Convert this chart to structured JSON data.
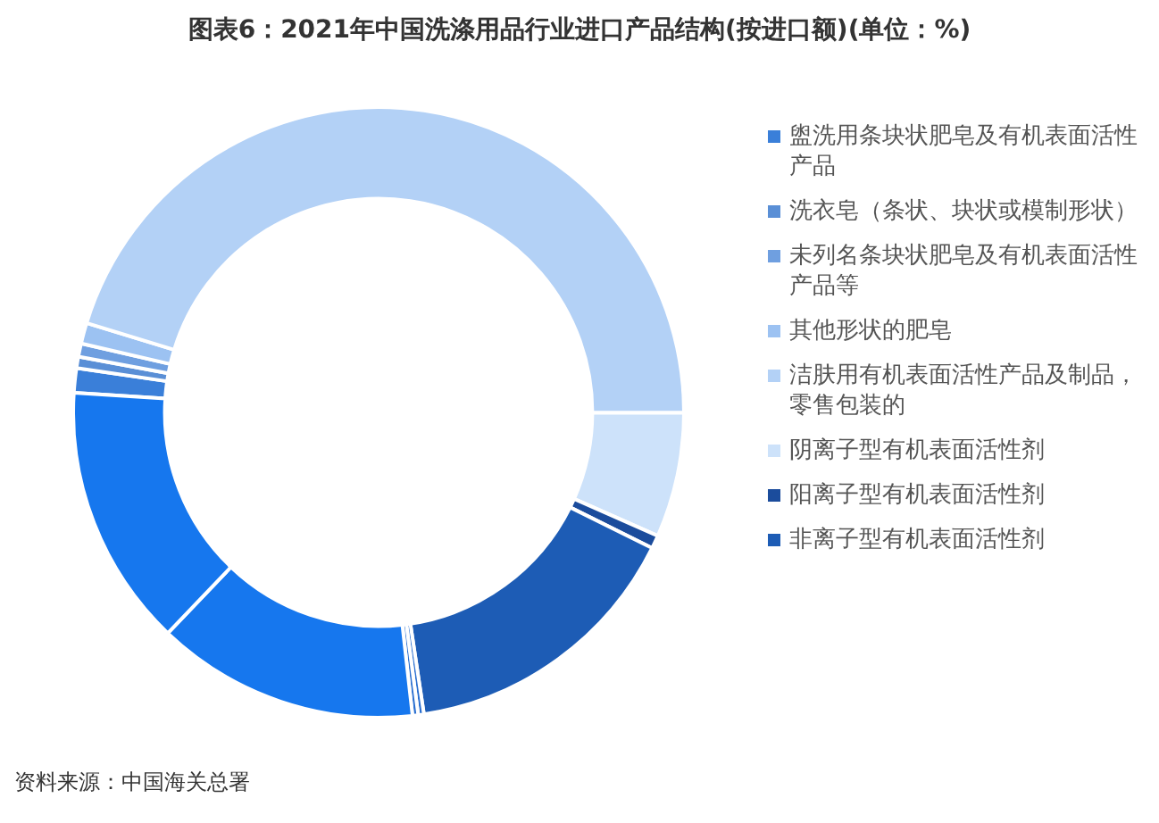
{
  "chart_data": {
    "type": "donut",
    "title": "图表6：2021年中国洗涤用品行业进口产品结构(按进口额)(单位：%)",
    "categories": [
      "盥洗用条块状肥皂及有机表面活性产品",
      "洗衣皂（条状、块状或模制形状）",
      "未列名条块状肥皂及有机表面活性产品等",
      "其他形状的肥皂",
      "洁肤用有机表面活性产品及制品，零售包装的",
      "阴离子型有机表面活性剂",
      "阳离子型有机表面活性剂",
      "非离子型有机表面活性剂",
      null,
      null,
      null,
      null
    ],
    "values": [
      1.3,
      0.6,
      0.7,
      1.1,
      45.3,
      6.6,
      0.7,
      15.3,
      0.3,
      0.3,
      13.9,
      13.9
    ],
    "colors": [
      "#3a7fd9",
      "#5a8fd6",
      "#6f9fe0",
      "#9cc2f2",
      "#b3d1f6",
      "#cde2fa",
      "#1b4c9c",
      "#1d5cb5",
      "#2a6fd0",
      "#2a6fd0",
      "#1677ee",
      "#1677ee"
    ],
    "legend": "right",
    "annotations": [
      "资料来源：中国海关总署"
    ]
  }
}
